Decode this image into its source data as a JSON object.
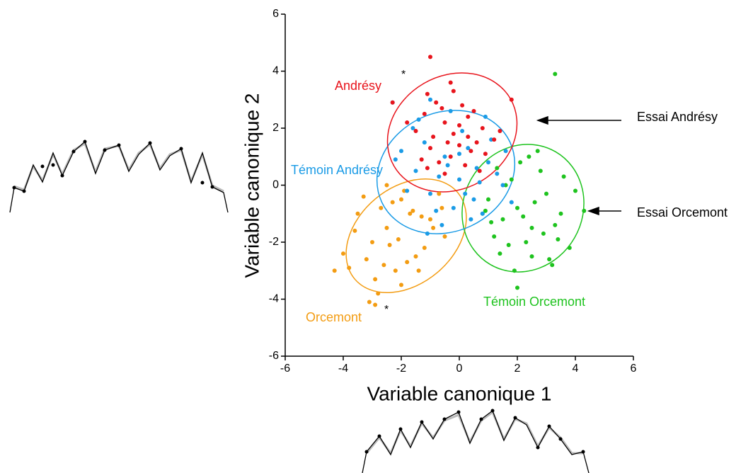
{
  "chart_data": {
    "type": "scatter",
    "x_label": "Variable canonique 1",
    "y_label": "Variable canonique 2",
    "xlim": [
      -6,
      6
    ],
    "ylim": [
      -6,
      6
    ],
    "xticks": [
      -6,
      -4,
      -2,
      0,
      2,
      4,
      6
    ],
    "yticks": [
      -6,
      -4,
      -2,
      0,
      2,
      4,
      6
    ],
    "series": [
      {
        "name": "Andrésy",
        "color": "#e8141c",
        "x": [
          -1.2,
          -0.8,
          -0.5,
          -0.2,
          0.3,
          0.6,
          -1.5,
          -1.0,
          -0.3,
          0.1,
          0.8,
          1.2,
          -0.7,
          -0.4,
          0.0,
          0.4,
          -1.8,
          -1.1,
          -0.6,
          0.2,
          0.9,
          -0.9,
          -0.2,
          0.5,
          1.4,
          -1.3,
          -0.5,
          0.3,
          -1.1,
          0.7,
          -2.3,
          -1.0,
          1.8,
          -0.3,
          0.0
        ],
        "values": [
          2.5,
          2.9,
          2.2,
          1.8,
          2.4,
          1.5,
          1.9,
          1.3,
          1.0,
          2.8,
          2.0,
          1.6,
          0.8,
          1.5,
          2.1,
          1.2,
          2.2,
          0.6,
          2.7,
          0.7,
          1.1,
          1.7,
          3.3,
          2.6,
          1.9,
          0.9,
          0.4,
          1.7,
          3.2,
          0.5,
          2.9,
          4.5,
          3.0,
          3.6,
          1.4
        ]
      },
      {
        "name": "Témoin Andrésy",
        "color": "#1a9be6",
        "x": [
          -2.0,
          -1.5,
          -1.0,
          -0.5,
          0.0,
          0.5,
          1.0,
          1.5,
          -1.8,
          -1.2,
          -0.7,
          -0.2,
          0.3,
          0.8,
          1.3,
          1.8,
          -2.2,
          -1.4,
          -0.6,
          0.1,
          0.6,
          1.1,
          -1.0,
          -0.3,
          0.4,
          0.9,
          -1.6,
          -0.8,
          0.2,
          0.7,
          -2.3,
          -0.4,
          1.6,
          -1.1,
          0.0
        ],
        "values": [
          1.2,
          0.5,
          -0.3,
          1.0,
          0.2,
          -0.5,
          0.8,
          0.0,
          -0.2,
          1.5,
          0.3,
          -0.8,
          1.3,
          -1.0,
          0.4,
          -0.6,
          0.9,
          2.3,
          -1.4,
          1.9,
          0.6,
          1.6,
          3.0,
          2.6,
          -1.2,
          2.4,
          2.0,
          -0.9,
          -0.3,
          0.1,
          2.9,
          0.7,
          1.2,
          -1.7,
          1.1
        ]
      },
      {
        "name": "Orcemont",
        "color": "#f39c12",
        "x": [
          -3.5,
          -3.0,
          -2.5,
          -2.0,
          -1.5,
          -1.0,
          -0.5,
          -3.2,
          -2.7,
          -2.2,
          -1.7,
          -1.2,
          -0.7,
          -4.0,
          -3.6,
          -2.9,
          -2.4,
          -1.9,
          -1.4,
          -0.9,
          -3.3,
          -2.6,
          -2.1,
          -1.6,
          -2.8,
          -4.3,
          -3.1,
          -2.3,
          -1.8,
          -0.6,
          -2.0,
          -2.9,
          -1.3,
          -3.8,
          -2.5
        ],
        "values": [
          -1.0,
          -2.0,
          -1.5,
          -0.5,
          -2.5,
          -1.2,
          -1.8,
          -2.6,
          -0.8,
          -3.0,
          -1.0,
          -2.2,
          -0.3,
          -2.4,
          -1.6,
          -3.3,
          -2.1,
          -0.2,
          -3.0,
          -1.5,
          -0.4,
          -2.8,
          -1.9,
          -0.9,
          -3.8,
          -3.0,
          -4.1,
          -0.6,
          -2.7,
          -0.8,
          -3.5,
          -4.2,
          -1.1,
          -2.9,
          0.0
        ]
      },
      {
        "name": "Témoin Orcemont",
        "color": "#1ec31e",
        "x": [
          1.0,
          1.5,
          2.0,
          2.5,
          3.0,
          3.5,
          4.0,
          1.2,
          1.8,
          2.3,
          2.8,
          3.3,
          3.8,
          0.8,
          1.4,
          2.1,
          2.6,
          3.1,
          3.6,
          1.6,
          2.2,
          2.7,
          3.2,
          1.9,
          2.4,
          2.9,
          0.9,
          1.3,
          3.4,
          4.3,
          2.0,
          3.3,
          2.5,
          1.1,
          1.7
        ],
        "values": [
          -0.5,
          -1.2,
          -0.8,
          -1.5,
          -0.3,
          -1.0,
          -0.2,
          -1.8,
          0.2,
          -2.0,
          0.5,
          -1.4,
          -2.2,
          -1.0,
          -2.4,
          0.8,
          -0.6,
          -2.6,
          0.3,
          0.0,
          -1.1,
          1.2,
          -2.8,
          -3.0,
          1.0,
          -1.7,
          -0.9,
          0.6,
          -1.9,
          -0.9,
          -3.6,
          3.9,
          -2.5,
          -1.3,
          -2.1
        ]
      }
    ],
    "annotations": [
      "*",
      "*",
      "Essai Andrésy",
      "Essai Orcemont"
    ]
  }
}
